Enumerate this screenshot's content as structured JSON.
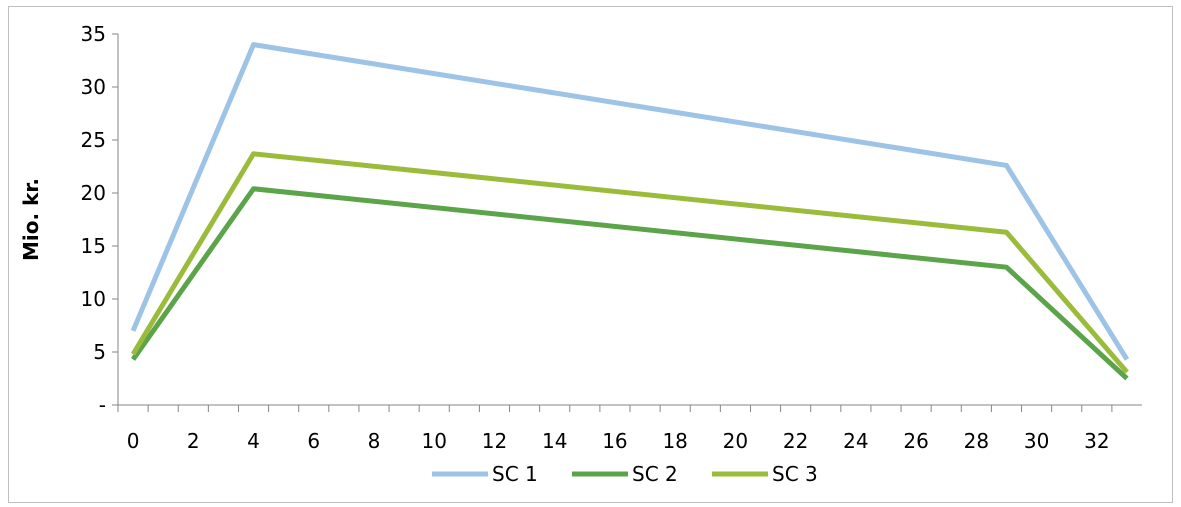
{
  "chart_data": {
    "type": "line",
    "title": "",
    "xlabel": "",
    "ylabel": "Mio. kr.",
    "x": [
      0,
      4,
      29,
      33
    ],
    "xlim": [
      -0.5,
      33.5
    ],
    "xticks": [
      0,
      2,
      4,
      6,
      8,
      10,
      12,
      14,
      16,
      18,
      20,
      22,
      24,
      26,
      28,
      30,
      32
    ],
    "ylim": [
      0,
      35
    ],
    "yticks": [
      0,
      5,
      10,
      15,
      20,
      25,
      30,
      35
    ],
    "ytick_labels": [
      "-",
      "5",
      "10",
      "15",
      "20",
      "25",
      "30",
      "35"
    ],
    "grid": false,
    "legend": "bottom",
    "series": [
      {
        "name": "SC 1",
        "color": "#9DC3E6",
        "values": [
          7.0,
          34.0,
          22.6,
          4.3
        ]
      },
      {
        "name": "SC 2",
        "color": "#5BA449",
        "values": [
          4.3,
          20.4,
          13.0,
          2.5
        ]
      },
      {
        "name": "SC 3",
        "color": "#9BBB3B",
        "values": [
          4.8,
          23.7,
          16.3,
          3.1
        ]
      }
    ]
  }
}
